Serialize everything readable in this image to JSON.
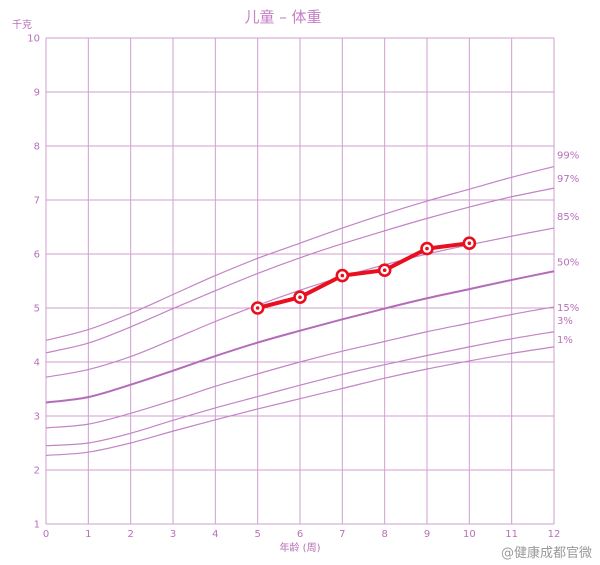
{
  "chart_data": {
    "type": "line",
    "title": "儿童 – 体重",
    "ylabel": "千克",
    "xlabel": "年龄 (周)",
    "xlim": [
      0,
      12
    ],
    "ylim": [
      1,
      10
    ],
    "grid": true,
    "x_ticks": [
      0,
      1,
      2,
      3,
      4,
      5,
      6,
      7,
      8,
      9,
      10,
      11,
      12
    ],
    "y_ticks": [
      1,
      2,
      3,
      4,
      5,
      6,
      7,
      8,
      9,
      10
    ],
    "percentile_x": [
      0,
      1,
      2,
      3,
      4,
      5,
      6,
      7,
      8,
      9,
      10,
      11,
      12
    ],
    "percentiles": [
      {
        "name": "99%",
        "values": [
          4.4,
          4.6,
          4.9,
          5.25,
          5.6,
          5.92,
          6.2,
          6.48,
          6.74,
          6.98,
          7.2,
          7.42,
          7.62
        ]
      },
      {
        "name": "97%",
        "values": [
          4.17,
          4.35,
          4.65,
          4.99,
          5.32,
          5.64,
          5.93,
          6.19,
          6.43,
          6.66,
          6.87,
          7.06,
          7.22
        ]
      },
      {
        "name": "85%",
        "values": [
          3.72,
          3.86,
          4.1,
          4.42,
          4.75,
          5.05,
          5.33,
          5.58,
          5.8,
          6.0,
          6.17,
          6.33,
          6.48
        ]
      },
      {
        "name": "50%",
        "values": [
          3.25,
          3.35,
          3.58,
          3.84,
          4.11,
          4.36,
          4.58,
          4.79,
          4.99,
          5.18,
          5.35,
          5.52,
          5.68
        ]
      },
      {
        "name": "15%",
        "values": [
          2.78,
          2.85,
          3.05,
          3.29,
          3.55,
          3.78,
          4.0,
          4.2,
          4.38,
          4.56,
          4.72,
          4.88,
          5.02
        ]
      },
      {
        "name": "3%",
        "values": [
          2.45,
          2.5,
          2.68,
          2.92,
          3.15,
          3.36,
          3.57,
          3.77,
          3.95,
          4.12,
          4.28,
          4.43,
          4.56
        ]
      },
      {
        "name": "1%",
        "values": [
          2.27,
          2.33,
          2.5,
          2.72,
          2.93,
          3.13,
          3.32,
          3.51,
          3.7,
          3.87,
          4.02,
          4.16,
          4.28
        ]
      }
    ],
    "series": [
      {
        "x": [
          5,
          6,
          7,
          8,
          9,
          10
        ],
        "values": [
          5.0,
          5.2,
          5.6,
          5.7,
          6.1,
          6.2
        ]
      }
    ],
    "colors": {
      "grid": "#cf9fd1",
      "curve": "#c384c6",
      "median": "#b46cb8",
      "series": "#e8101e",
      "text": "#b870b8"
    }
  },
  "watermark": "@健康成都官微"
}
